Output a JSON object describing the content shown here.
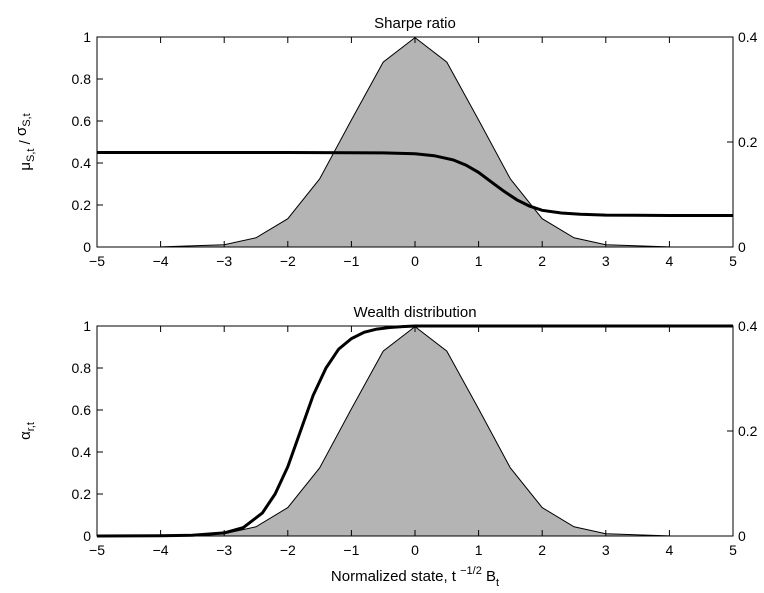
{
  "chart_data": [
    {
      "type": "area",
      "title": "Sharpe ratio",
      "xlabel": "",
      "ylabel": "μS,t / σS,t",
      "xlim": [
        -5,
        5
      ],
      "ylim": [
        0,
        1
      ],
      "ylim_right": [
        0,
        0.4
      ],
      "xticks": [
        "−5",
        "−4",
        "−3",
        "−2",
        "−1",
        "0",
        "1",
        "2",
        "3",
        "4",
        "5"
      ],
      "yticks": [
        "0",
        "0.2",
        "0.4",
        "0.6",
        "0.8",
        "1"
      ],
      "yticks_right": [
        "0",
        "0.2",
        "0.4"
      ],
      "grid": false,
      "series": [
        {
          "axis": "right",
          "style": "filled gray",
          "x": [
            -5,
            -4,
            -3,
            -2.5,
            -2,
            -1.5,
            -1,
            -0.5,
            0,
            0.5,
            1,
            1.5,
            2,
            2.5,
            3,
            4,
            5
          ],
          "values": [
            0.0,
            0.0001,
            0.0044,
            0.0175,
            0.054,
            0.1295,
            0.242,
            0.3521,
            0.3989,
            0.3521,
            0.242,
            0.1295,
            0.054,
            0.0175,
            0.0044,
            0.0001,
            0.0
          ]
        },
        {
          "axis": "left",
          "style": "thick black line",
          "x": [
            -5,
            -4,
            -3,
            -2,
            -1,
            -0.5,
            0,
            0.3,
            0.6,
            0.8,
            1.0,
            1.2,
            1.4,
            1.6,
            1.8,
            2.0,
            2.3,
            2.6,
            3,
            4,
            5
          ],
          "values": [
            0.45,
            0.45,
            0.45,
            0.45,
            0.449,
            0.448,
            0.444,
            0.435,
            0.415,
            0.39,
            0.355,
            0.31,
            0.265,
            0.225,
            0.195,
            0.175,
            0.162,
            0.156,
            0.152,
            0.15,
            0.15
          ]
        }
      ]
    },
    {
      "type": "area",
      "title": "Wealth distribution",
      "xlabel": "Normalized state, t −1/2 Bt",
      "ylabel": "αr,t",
      "xlim": [
        -5,
        5
      ],
      "ylim": [
        0,
        1
      ],
      "ylim_right": [
        0,
        0.4
      ],
      "xticks": [
        "−5",
        "−4",
        "−3",
        "−2",
        "−1",
        "0",
        "1",
        "2",
        "3",
        "4",
        "5"
      ],
      "yticks": [
        "0",
        "0.2",
        "0.4",
        "0.6",
        "0.8",
        "1"
      ],
      "yticks_right": [
        "0",
        "0.2",
        "0.4"
      ],
      "grid": false,
      "series": [
        {
          "axis": "right",
          "style": "filled gray",
          "x": [
            -5,
            -4,
            -3,
            -2.5,
            -2,
            -1.5,
            -1,
            -0.5,
            0,
            0.5,
            1,
            1.5,
            2,
            2.5,
            3,
            4,
            5
          ],
          "values": [
            0.0,
            0.0001,
            0.0044,
            0.0175,
            0.054,
            0.1295,
            0.242,
            0.3521,
            0.3989,
            0.3521,
            0.242,
            0.1295,
            0.054,
            0.0175,
            0.0044,
            0.0001,
            0.0
          ]
        },
        {
          "axis": "left",
          "style": "thick black line",
          "x": [
            -5,
            -4,
            -3.5,
            -3,
            -2.7,
            -2.4,
            -2.2,
            -2.0,
            -1.8,
            -1.6,
            -1.4,
            -1.2,
            -1.0,
            -0.8,
            -0.6,
            -0.4,
            -0.2,
            0,
            1,
            3,
            5
          ],
          "values": [
            0,
            0.001,
            0.004,
            0.015,
            0.04,
            0.11,
            0.2,
            0.33,
            0.5,
            0.67,
            0.8,
            0.89,
            0.94,
            0.97,
            0.985,
            0.993,
            0.997,
            1.0,
            1.0,
            1.0,
            1.0
          ]
        }
      ]
    }
  ]
}
